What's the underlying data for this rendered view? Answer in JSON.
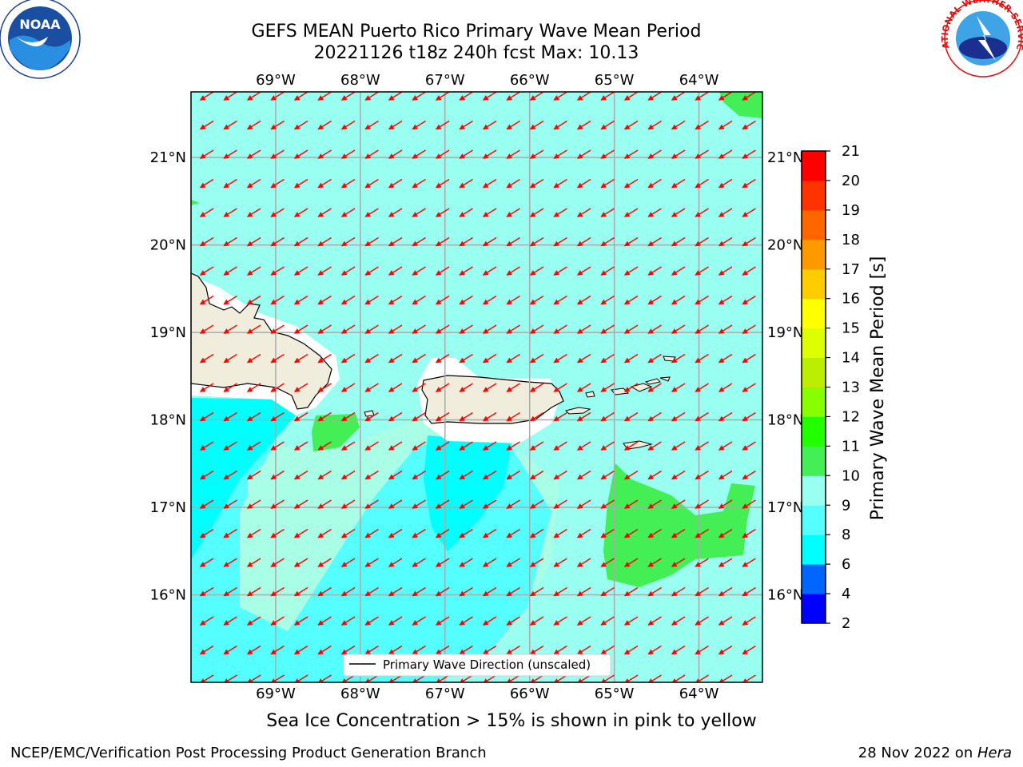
{
  "title": {
    "line1": "GEFS MEAN Puerto Rico Primary Wave Mean Period",
    "line2": "20221126 t18z 240h fcst   Max: 10.13"
  },
  "axes": {
    "lon_labels": [
      "69°W",
      "68°W",
      "67°W",
      "66°W",
      "65°W",
      "64°W"
    ],
    "lon_values": [
      -69,
      -68,
      -67,
      -66,
      -65,
      -64
    ],
    "lat_labels": [
      "21°N",
      "20°N",
      "19°N",
      "18°N",
      "17°N",
      "16°N"
    ],
    "lat_values": [
      21,
      20,
      19,
      18,
      17,
      16
    ],
    "lon_range": [
      -70.0,
      -63.25
    ],
    "lat_range": [
      15.0,
      21.75
    ]
  },
  "colorbar": {
    "label": "Primary Wave Mean Period [s]",
    "ticks": [
      "2",
      "4",
      "6",
      "8",
      "9",
      "10",
      "11",
      "12",
      "13",
      "14",
      "15",
      "16",
      "17",
      "18",
      "19",
      "20",
      "21"
    ],
    "colors": [
      "#0000ff",
      "#0066ff",
      "#00ffff",
      "#55ffff",
      "#99fff0",
      "#44ee55",
      "#22ff00",
      "#88ff00",
      "#bbee00",
      "#ddff00",
      "#ffff00",
      "#ffcc00",
      "#ff9900",
      "#ff6600",
      "#ff3300",
      "#ff0000"
    ]
  },
  "legend": {
    "label": "Primary Wave Direction (unscaled)"
  },
  "note": "Sea Ice Concentration > 15% is shown in pink to yellow",
  "footer": {
    "left": "NCEP/EMC/Verification Post Processing Product Generation Branch",
    "right_prefix": "28 Nov 2022 on ",
    "right_host": "Hera"
  },
  "logos": {
    "left": "NOAA",
    "right": "NATIONAL WEATHER SERVICE"
  },
  "colors": {
    "ocean_base": "#99fff0",
    "ocean_light": "#a8ffe6",
    "cyan": "#00ffff",
    "mid_cyan": "#55ffff",
    "green": "#44ee55",
    "land": "#f0eddc",
    "arrow": "#ff0000"
  }
}
